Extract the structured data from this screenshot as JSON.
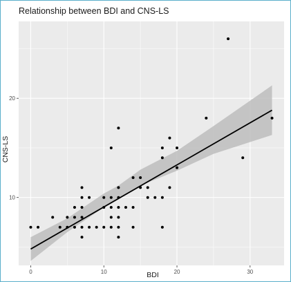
{
  "chart_data": {
    "type": "scatter",
    "title": "Relationship between BDI and CNS-LS",
    "xlabel": "BDI",
    "ylabel": "CNS-LS",
    "xlim": [
      -1.65,
      34.65
    ],
    "ylim": [
      3.15,
      27.75
    ],
    "x_ticks": [
      0,
      10,
      20,
      30
    ],
    "y_ticks": [
      10,
      20
    ],
    "grid": true,
    "background": "#ebebeb",
    "points": [
      [
        0,
        7
      ],
      [
        1,
        7
      ],
      [
        3,
        8
      ],
      [
        4,
        7
      ],
      [
        5,
        7
      ],
      [
        5,
        8
      ],
      [
        6,
        7
      ],
      [
        6,
        8
      ],
      [
        6,
        9
      ],
      [
        7,
        6
      ],
      [
        7,
        7
      ],
      [
        7,
        8
      ],
      [
        7,
        9
      ],
      [
        7,
        10
      ],
      [
        7,
        11
      ],
      [
        8,
        7
      ],
      [
        8,
        10
      ],
      [
        9,
        7
      ],
      [
        10,
        7
      ],
      [
        10,
        9
      ],
      [
        10,
        10
      ],
      [
        11,
        7
      ],
      [
        11,
        8
      ],
      [
        11,
        9
      ],
      [
        11,
        10
      ],
      [
        11,
        15
      ],
      [
        12,
        6
      ],
      [
        12,
        7
      ],
      [
        12,
        8
      ],
      [
        12,
        9
      ],
      [
        12,
        10
      ],
      [
        12,
        11
      ],
      [
        12,
        17
      ],
      [
        13,
        9
      ],
      [
        14,
        7
      ],
      [
        14,
        9
      ],
      [
        14,
        12
      ],
      [
        15,
        11
      ],
      [
        15,
        12
      ],
      [
        16,
        10
      ],
      [
        16,
        11
      ],
      [
        17,
        10
      ],
      [
        18,
        7
      ],
      [
        18,
        10
      ],
      [
        18,
        14
      ],
      [
        18,
        15
      ],
      [
        19,
        11
      ],
      [
        19,
        16
      ],
      [
        20,
        13
      ],
      [
        20,
        15
      ],
      [
        24,
        18
      ],
      [
        27,
        26
      ],
      [
        29,
        14
      ],
      [
        33,
        18
      ]
    ],
    "fit_line": {
      "x": [
        0,
        33
      ],
      "y": [
        4.8,
        18.8
      ]
    },
    "confidence_band": {
      "x": [
        0,
        5,
        10,
        12,
        15,
        20,
        25,
        33
      ],
      "lower": [
        3.6,
        6.5,
        9.0,
        9.9,
        11.2,
        12.7,
        14.4,
        16.3
      ],
      "upper": [
        6.0,
        7.9,
        10.4,
        11.2,
        12.8,
        14.7,
        17.2,
        21.3
      ]
    },
    "colors": {
      "point": "#000000",
      "fit_line": "#000000",
      "band": "#bdbdbd",
      "grid": "#ffffff"
    }
  }
}
